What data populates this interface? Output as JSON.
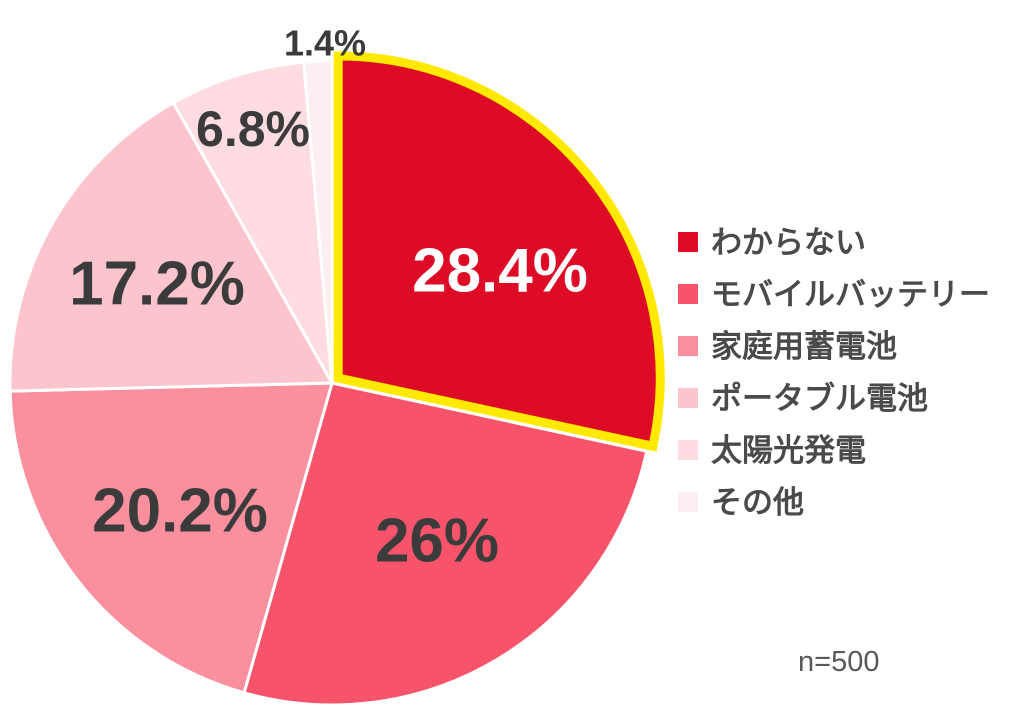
{
  "chart_data": {
    "type": "pie",
    "title": "",
    "sample_size_label": "n=500",
    "legend_position": "right",
    "start_angle_deg": 0,
    "direction": "clockwise",
    "background_color": "#ffffff",
    "separator_color": "#ffffff",
    "highlight_outline_color": "#ffe900",
    "value_label_color": "#3b3b3b",
    "value_label_color_on_highlight": "#ffffff",
    "legend_text_color": "#4a4a4a",
    "series": [
      {
        "label": "わからない",
        "value": 28.4,
        "value_label": "28.4%",
        "color": "#dd0b26",
        "highlighted": true
      },
      {
        "label": "モバイルバッテリー",
        "value": 26.0,
        "value_label": "26%",
        "color": "#f7546b",
        "highlighted": false
      },
      {
        "label": "家庭用蓄電池",
        "value": 20.2,
        "value_label": "20.2%",
        "color": "#fa8f9e",
        "highlighted": false
      },
      {
        "label": "ポータブル電池",
        "value": 17.2,
        "value_label": "17.2%",
        "color": "#fcc5cd",
        "highlighted": false
      },
      {
        "label": "太陽光発電",
        "value": 6.8,
        "value_label": "6.8%",
        "color": "#fedce2",
        "highlighted": false
      },
      {
        "label": "その他",
        "value": 1.4,
        "value_label": "1.4%",
        "color": "#fdeef1",
        "highlighted": false
      }
    ]
  }
}
